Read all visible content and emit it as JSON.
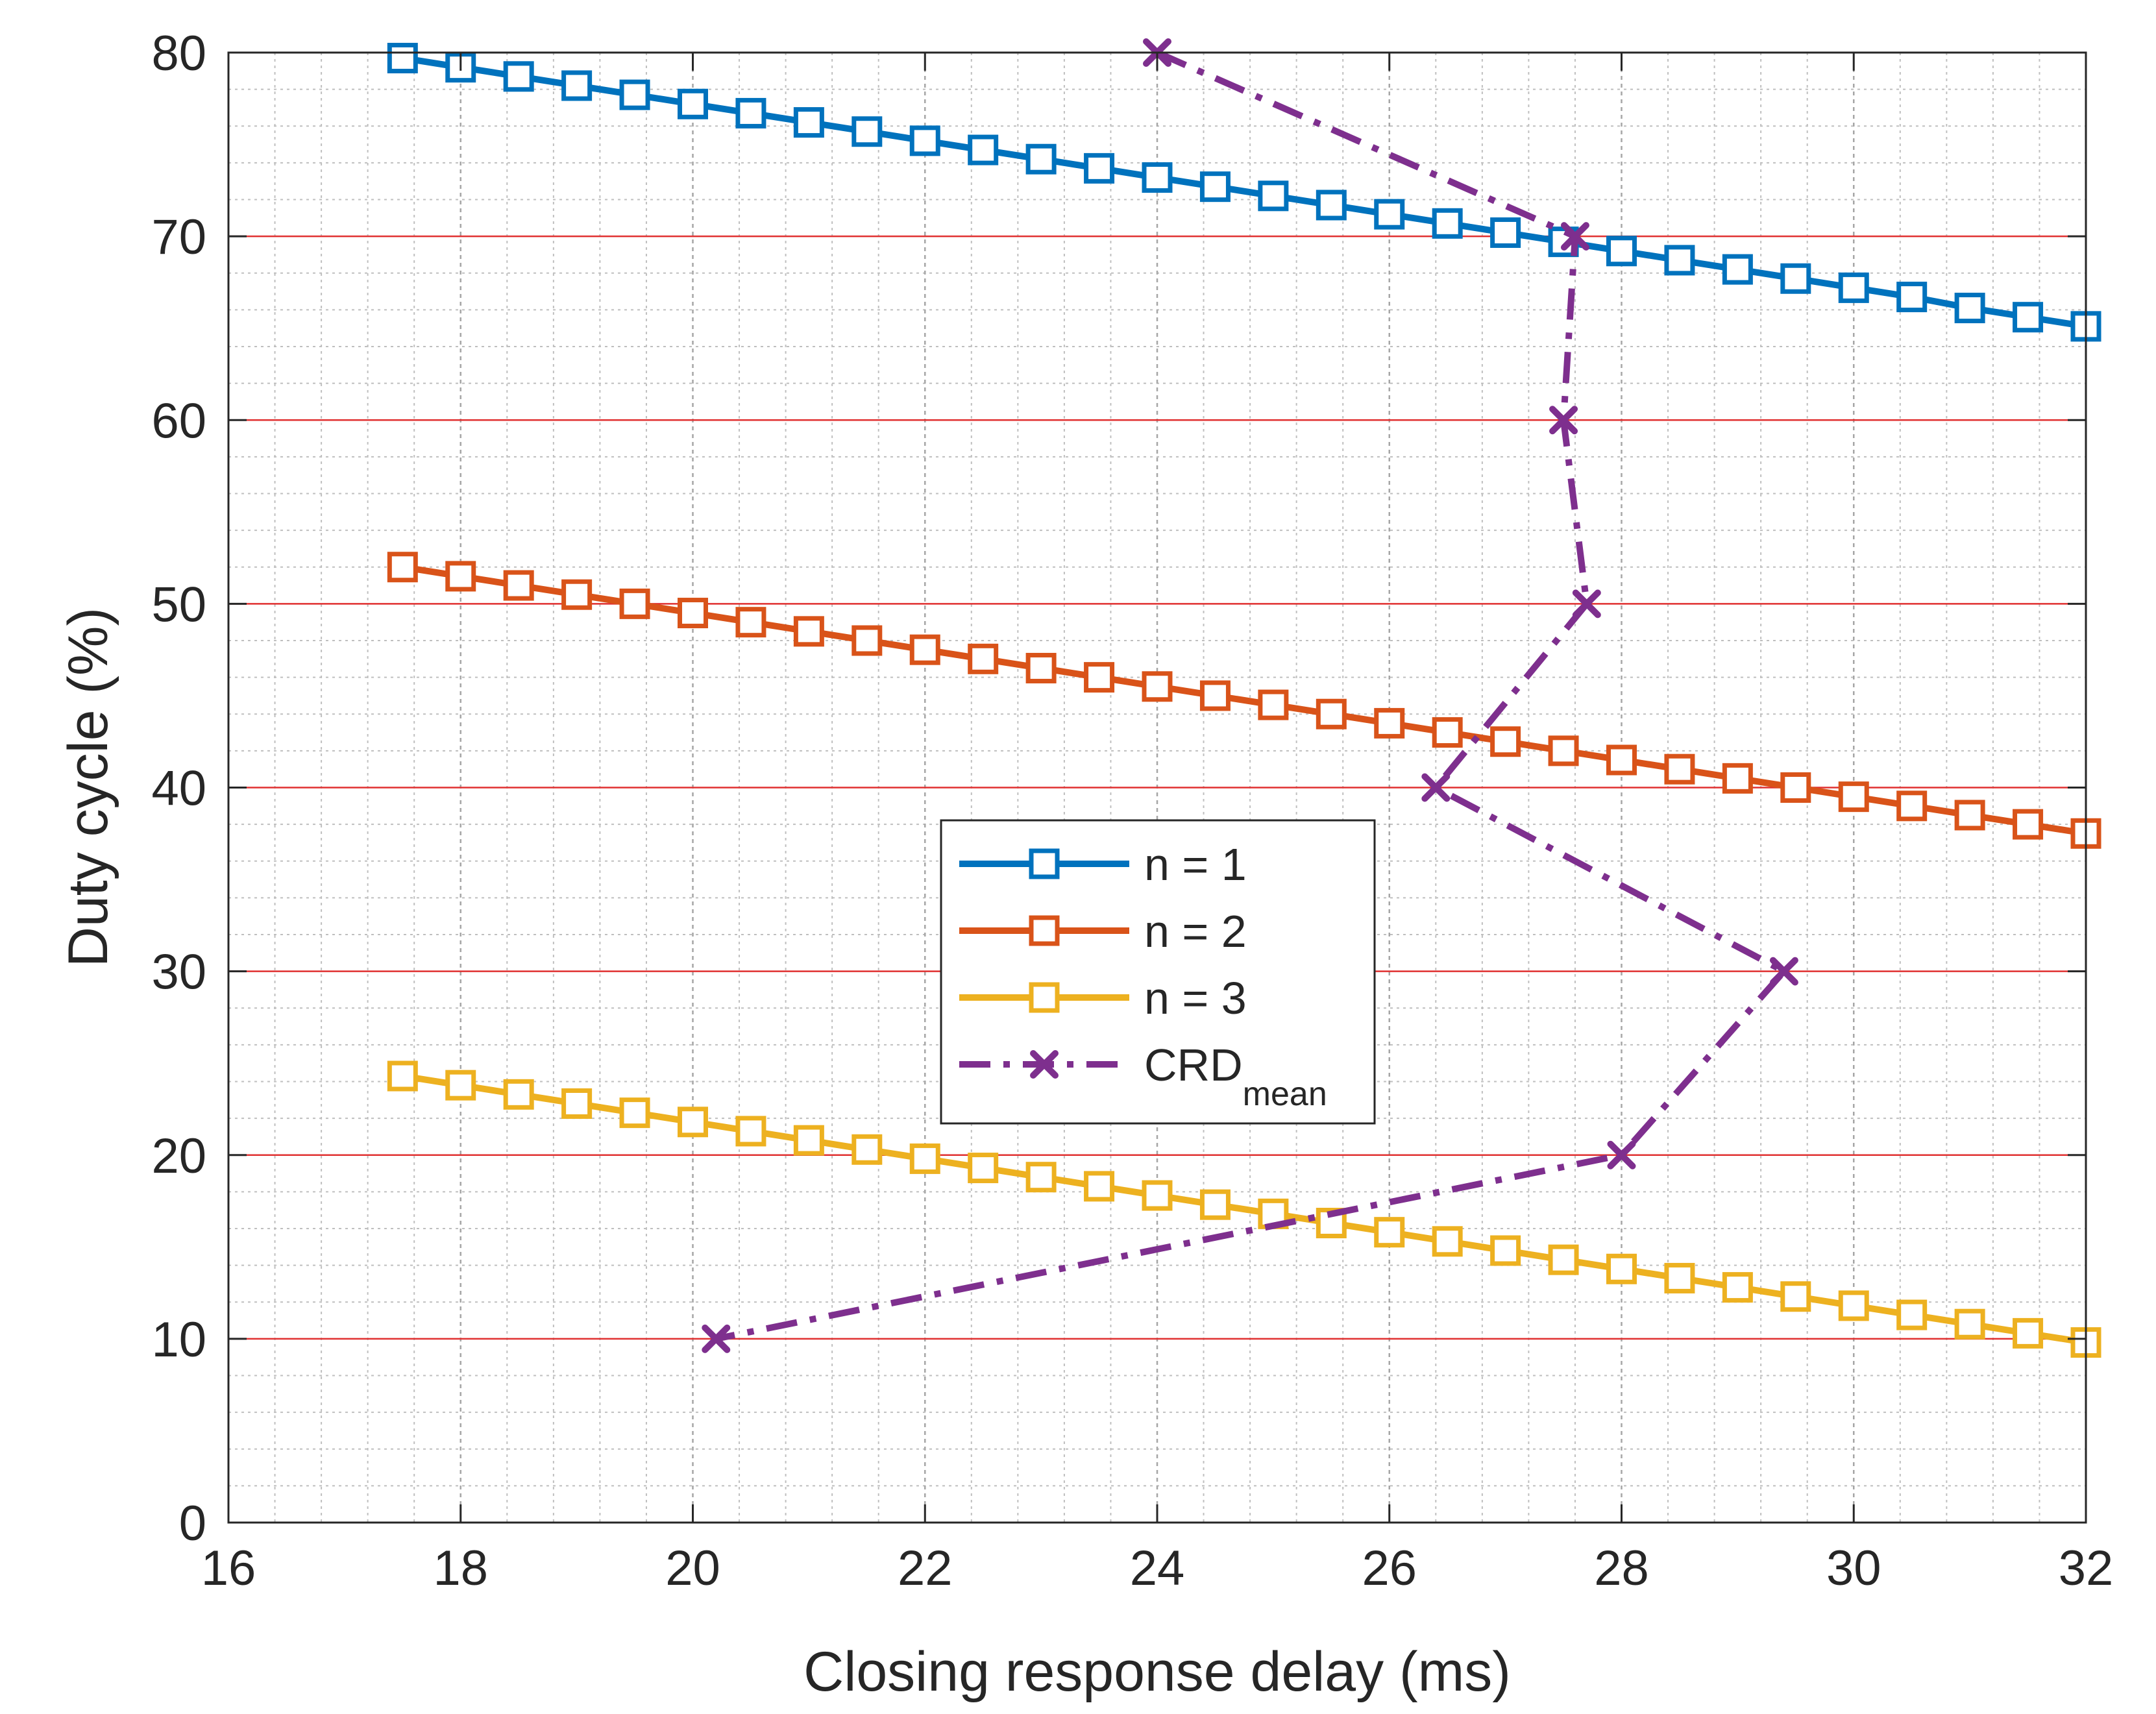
{
  "chart_data": {
    "type": "line",
    "xlabel": "Closing response delay (ms)",
    "ylabel": "Duty cycle (%)",
    "xlim": [
      16,
      32
    ],
    "ylim": [
      0,
      80
    ],
    "xticks": [
      16,
      18,
      20,
      22,
      24,
      26,
      28,
      30,
      32
    ],
    "yticks": [
      0,
      10,
      20,
      30,
      40,
      50,
      60,
      70,
      80
    ],
    "xtick_labels": [
      "16",
      "18",
      "20",
      "22",
      "24",
      "26",
      "28",
      "30",
      "32"
    ],
    "ytick_labels": [
      "0",
      "10",
      "20",
      "30",
      "40",
      "50",
      "60",
      "70",
      "80"
    ],
    "grid": "major and minor; major horizontal lines red",
    "legend_position": "center",
    "colors": {
      "n1": "#0072BD",
      "n2": "#D95319",
      "n3": "#EDB120",
      "crd": "#7E2F8E",
      "major_grid_y": "#E03030",
      "grid": "#BFBFBF"
    },
    "series": [
      {
        "name": "n = 1",
        "color": "#0072BD",
        "marker": "square",
        "line": "solid",
        "x": [
          17.5,
          18,
          18.5,
          19,
          19.5,
          20,
          20.5,
          21,
          21.5,
          22,
          22.5,
          23,
          23.5,
          24,
          24.5,
          25,
          25.5,
          26,
          26.5,
          27,
          27.5,
          28,
          28.5,
          29,
          29.5,
          30,
          30.5,
          31,
          31.5,
          32
        ],
        "y": [
          79.7,
          79.2,
          78.7,
          78.2,
          77.7,
          77.2,
          76.7,
          76.2,
          75.7,
          75.2,
          74.7,
          74.2,
          73.7,
          73.2,
          72.7,
          72.2,
          71.7,
          71.2,
          70.7,
          70.2,
          69.7,
          69.2,
          68.7,
          68.2,
          67.7,
          67.2,
          66.7,
          66.1,
          65.6,
          65.1
        ]
      },
      {
        "name": "n = 2",
        "color": "#D95319",
        "marker": "square",
        "line": "solid",
        "x": [
          17.5,
          18,
          18.5,
          19,
          19.5,
          20,
          20.5,
          21,
          21.5,
          22,
          22.5,
          23,
          23.5,
          24,
          24.5,
          25,
          25.5,
          26,
          26.5,
          27,
          27.5,
          28,
          28.5,
          29,
          29.5,
          30,
          30.5,
          31,
          31.5,
          32
        ],
        "y": [
          52.0,
          51.5,
          51.0,
          50.5,
          50.0,
          49.5,
          49.0,
          48.5,
          48.0,
          47.5,
          47.0,
          46.5,
          46.0,
          45.5,
          45.0,
          44.5,
          44.0,
          43.5,
          43.0,
          42.5,
          42.0,
          41.5,
          41.0,
          40.5,
          40.0,
          39.5,
          39.0,
          38.5,
          38.0,
          37.5
        ]
      },
      {
        "name": "n = 3",
        "color": "#EDB120",
        "marker": "square",
        "line": "solid",
        "x": [
          17.5,
          18,
          18.5,
          19,
          19.5,
          20,
          20.5,
          21,
          21.5,
          22,
          22.5,
          23,
          23.5,
          24,
          24.5,
          25,
          25.5,
          26,
          26.5,
          27,
          27.5,
          28,
          28.5,
          29,
          29.5,
          30,
          30.5,
          31,
          31.5,
          32
        ],
        "y": [
          24.3,
          23.8,
          23.3,
          22.8,
          22.3,
          21.8,
          21.3,
          20.8,
          20.3,
          19.8,
          19.3,
          18.8,
          18.3,
          17.8,
          17.3,
          16.8,
          16.3,
          15.8,
          15.3,
          14.8,
          14.3,
          13.8,
          13.3,
          12.8,
          12.3,
          11.8,
          11.3,
          10.8,
          10.3,
          9.8
        ]
      },
      {
        "name": "CRD",
        "name_subscript": "mean",
        "color": "#7E2F8E",
        "marker": "x",
        "line": "dash-dot",
        "x": [
          24.0,
          27.6,
          27.5,
          27.7,
          26.4,
          29.4,
          28.0,
          20.2
        ],
        "y": [
          80,
          70,
          60,
          50,
          40,
          30,
          20,
          10
        ]
      }
    ]
  }
}
